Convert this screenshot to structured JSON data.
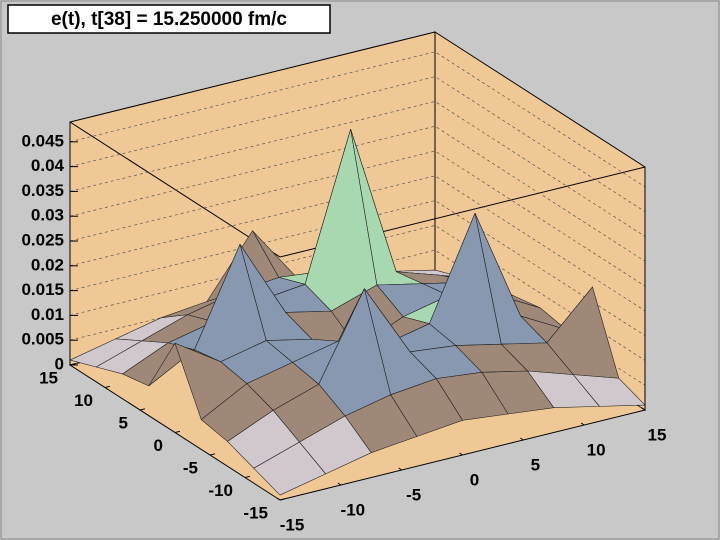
{
  "chart_data": {
    "type": "surface",
    "title": "e(t), t[38] = 15.250000 fm/c",
    "x": [
      -15,
      -11.25,
      -7.5,
      -3.75,
      0,
      3.75,
      7.5,
      11.25,
      15
    ],
    "y": [
      -15,
      -11.25,
      -7.5,
      -3.75,
      0,
      3.75,
      7.5,
      11.25,
      15
    ],
    "z": [
      [
        0.001,
        0.003,
        0.005,
        0.006,
        0.007,
        0.006,
        0.005,
        0.003,
        0.001
      ],
      [
        0.003,
        0.006,
        0.009,
        0.011,
        0.012,
        0.011,
        0.009,
        0.006,
        0.003
      ],
      [
        0.005,
        0.009,
        0.012,
        0.029,
        0.014,
        0.013,
        0.011,
        0.009,
        0.018
      ],
      [
        0.006,
        0.011,
        0.013,
        0.015,
        0.012,
        0.014,
        0.034,
        0.011,
        0.006
      ],
      [
        0.018,
        0.012,
        0.014,
        0.012,
        0.008,
        0.012,
        0.014,
        0.012,
        0.007
      ],
      [
        0.006,
        0.011,
        0.03,
        0.014,
        0.012,
        0.015,
        0.013,
        0.011,
        0.006
      ],
      [
        0.005,
        0.009,
        0.011,
        0.013,
        0.014,
        0.043,
        0.012,
        0.009,
        0.005
      ],
      [
        0.003,
        0.006,
        0.009,
        0.011,
        0.012,
        0.011,
        0.009,
        0.006,
        0.003
      ],
      [
        0.001,
        0.003,
        0.005,
        0.006,
        0.018,
        0.006,
        0.005,
        0.003,
        0.001
      ]
    ],
    "xlim": [
      -15,
      15
    ],
    "ylim": [
      -15,
      15
    ],
    "zlim": [
      0,
      0.049
    ],
    "xticks": [
      -15,
      -10,
      -5,
      0,
      5,
      10,
      15
    ],
    "yticks": [
      -15,
      -10,
      -5,
      0,
      5,
      10,
      15
    ],
    "zticks": [
      0,
      0.005,
      0.01,
      0.015,
      0.02,
      0.025,
      0.03,
      0.035,
      0.04,
      0.045
    ],
    "wall_color": "#f0c896",
    "palette": [
      "#d0c8cc",
      "#a08878",
      "#8898b0",
      "#a8d8b0",
      "#c8c8a8",
      "#e8e090",
      "#e03030",
      "#c020c0"
    ],
    "grid": true
  }
}
